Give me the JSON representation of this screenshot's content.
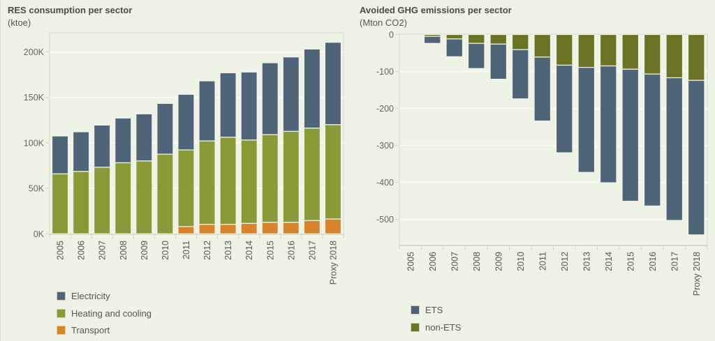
{
  "chart_data": [
    {
      "type": "bar",
      "stacked": true,
      "title": "RES consumption per sector",
      "subtitle": "(ktoe)",
      "xlabel": "",
      "ylabel": "ktoe",
      "ylim": [
        0,
        220000
      ],
      "yticks": [
        0,
        50000,
        100000,
        150000,
        200000
      ],
      "ytick_labels": [
        "0K",
        "50K",
        "100K",
        "150K",
        "200K"
      ],
      "grid": true,
      "legend_position": "bottom-left",
      "categories": [
        "2005",
        "2006",
        "2007",
        "2008",
        "2009",
        "2010",
        "2011",
        "2012",
        "2013",
        "2014",
        "2015",
        "2016",
        "2017",
        "Proxy 2018"
      ],
      "series": [
        {
          "name": "Transport",
          "color": "#d7842a",
          "values": [
            0,
            0,
            0,
            0,
            0,
            0,
            8000,
            10400,
            10400,
            11500,
            12700,
            12700,
            14600,
            16300
          ]
        },
        {
          "name": "Heating and cooling",
          "color": "#8a9a38",
          "values": [
            66000,
            68700,
            73300,
            78200,
            80200,
            87600,
            84300,
            91800,
            95900,
            91700,
            96400,
            100000,
            101700,
            103800
          ]
        },
        {
          "name": "Electricity",
          "color": "#4f6478",
          "values": [
            41600,
            43500,
            46300,
            49100,
            51700,
            55800,
            61100,
            66000,
            70800,
            74700,
            79000,
            81800,
            86900,
            90500
          ]
        }
      ],
      "legend": [
        {
          "name": "Electricity",
          "color": "#4f6478"
        },
        {
          "name": "Heating and cooling",
          "color": "#8a9a38"
        },
        {
          "name": "Transport",
          "color": "#d7842a"
        }
      ]
    },
    {
      "type": "bar",
      "stacked": true,
      "title": "Avoided GHG emissions per sector",
      "subtitle": "(Mton CO2)",
      "xlabel": "",
      "ylabel": "Mton CO2",
      "ylim": [
        -570,
        0
      ],
      "yticks": [
        0,
        -100,
        -200,
        -300,
        -400,
        -500
      ],
      "ytick_labels": [
        "0",
        "-100",
        "-200",
        "-300",
        "-400",
        "-500"
      ],
      "grid": true,
      "legend_position": "bottom-left",
      "categories": [
        "2005",
        "2006",
        "2007",
        "2008",
        "2009",
        "2010",
        "2011",
        "2012",
        "2013",
        "2014",
        "2015",
        "2016",
        "2017",
        "Proxy 2018"
      ],
      "series": [
        {
          "name": "non-ETS",
          "color": "#6b7325",
          "values": [
            0,
            -5,
            -12,
            -24,
            -26,
            -41,
            -61,
            -83,
            -89,
            -85,
            -94,
            -107,
            -117,
            -124
          ]
        },
        {
          "name": "ETS",
          "color": "#4f6478",
          "values": [
            0,
            -19,
            -48,
            -68,
            -95,
            -133,
            -173,
            -237,
            -284,
            -316,
            -357,
            -357,
            -386,
            -418
          ]
        }
      ],
      "legend": [
        {
          "name": "ETS",
          "color": "#4f6478"
        },
        {
          "name": "non-ETS",
          "color": "#6b7325"
        }
      ]
    }
  ]
}
